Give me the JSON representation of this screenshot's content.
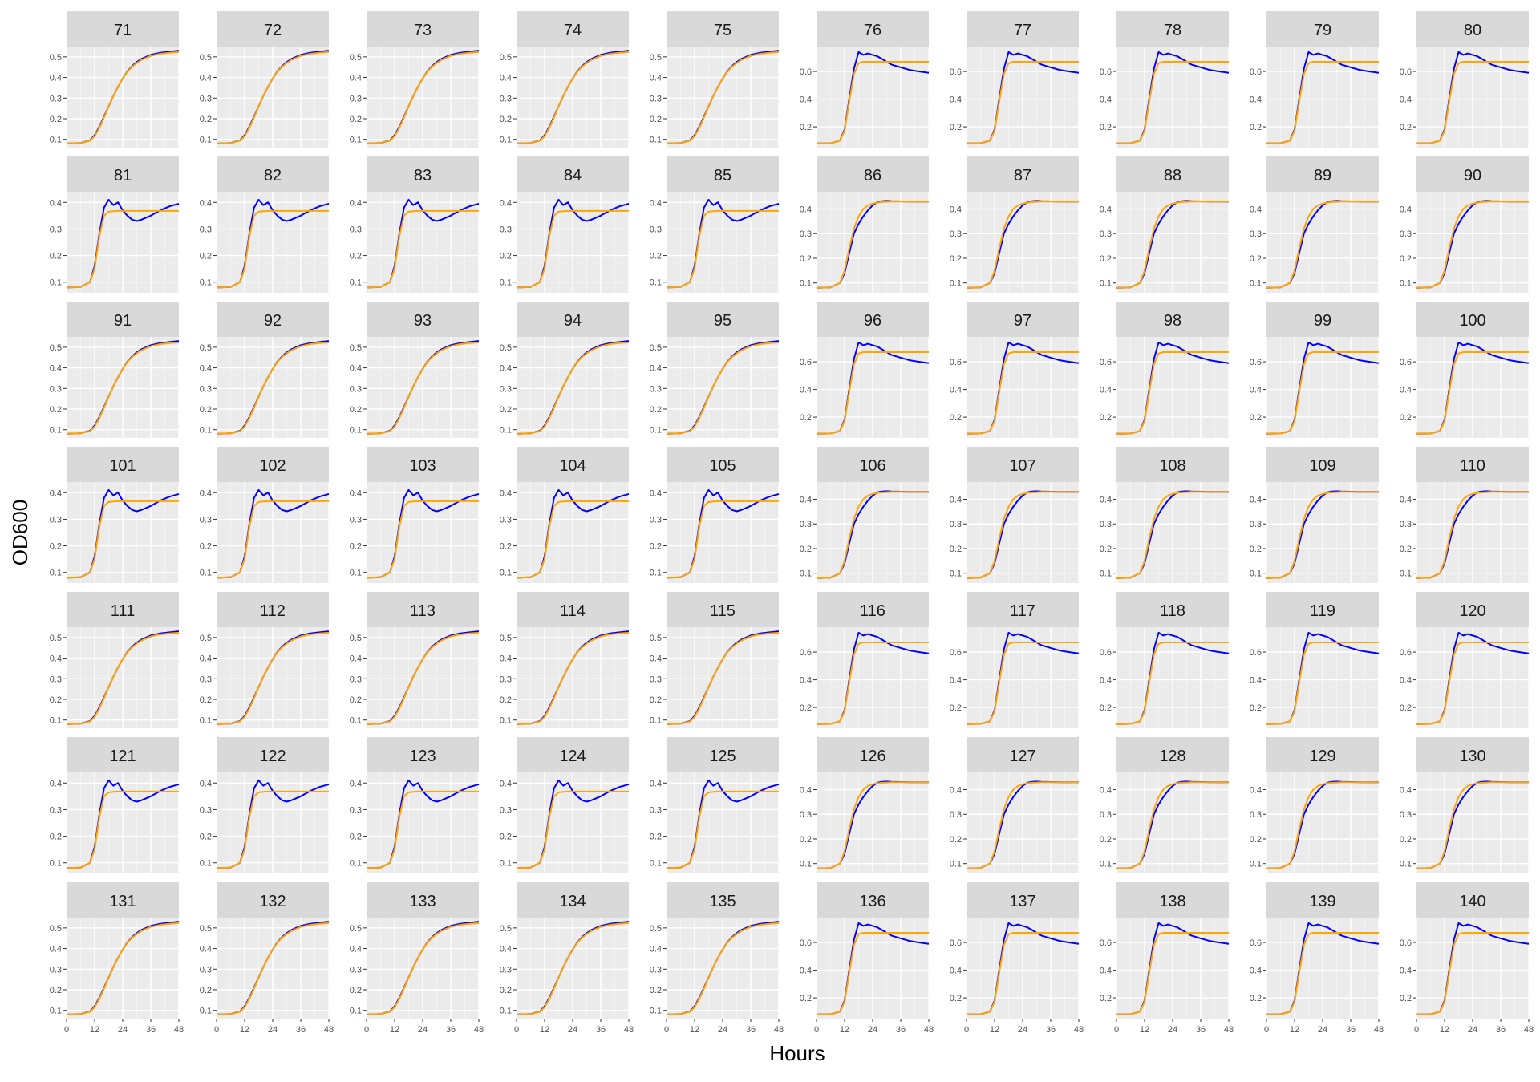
{
  "chart_data": {
    "type": "line",
    "facet_layout": {
      "rows": 7,
      "cols": 10
    },
    "xlabel": "Hours",
    "ylabel": "OD600",
    "x_ticks": [
      0,
      12,
      24,
      36,
      48
    ],
    "xlim": [
      0,
      48
    ],
    "grid": true,
    "legend": "none",
    "colors": {
      "observed": "#0000ff",
      "fitted": "#ffa500",
      "panel_bg": "#ebebeb",
      "strip_bg": "#d9d9d9",
      "grid": "#ffffff"
    },
    "shape_families": {
      "A": {
        "description": "smooth logistic",
        "ylim": [
          0.06,
          0.55
        ],
        "y_ticks": [
          0.1,
          0.2,
          0.3,
          0.4,
          0.5
        ]
      },
      "B": {
        "description": "sharp peak then decline",
        "ylim": [
          0.05,
          0.78
        ],
        "y_ticks": [
          0.2,
          0.4,
          0.6
        ]
      },
      "C": {
        "description": "overshoot with oscillation",
        "ylim": [
          0.06,
          0.44
        ],
        "y_ticks": [
          0.1,
          0.2,
          0.3,
          0.4
        ]
      },
      "D": {
        "description": "plateau near 0.43",
        "ylim": [
          0.06,
          0.47
        ],
        "y_ticks": [
          0.1,
          0.2,
          0.3,
          0.4
        ]
      }
    },
    "panels": [
      {
        "label": "71",
        "shape": "A"
      },
      {
        "label": "72",
        "shape": "A"
      },
      {
        "label": "73",
        "shape": "A"
      },
      {
        "label": "74",
        "shape": "A"
      },
      {
        "label": "75",
        "shape": "A"
      },
      {
        "label": "76",
        "shape": "B"
      },
      {
        "label": "77",
        "shape": "B"
      },
      {
        "label": "78",
        "shape": "B"
      },
      {
        "label": "79",
        "shape": "B"
      },
      {
        "label": "80",
        "shape": "B"
      },
      {
        "label": "81",
        "shape": "C"
      },
      {
        "label": "82",
        "shape": "C"
      },
      {
        "label": "83",
        "shape": "C"
      },
      {
        "label": "84",
        "shape": "C"
      },
      {
        "label": "85",
        "shape": "C"
      },
      {
        "label": "86",
        "shape": "D"
      },
      {
        "label": "87",
        "shape": "D"
      },
      {
        "label": "88",
        "shape": "D"
      },
      {
        "label": "89",
        "shape": "D"
      },
      {
        "label": "90",
        "shape": "D"
      },
      {
        "label": "91",
        "shape": "A"
      },
      {
        "label": "92",
        "shape": "A"
      },
      {
        "label": "93",
        "shape": "A"
      },
      {
        "label": "94",
        "shape": "A"
      },
      {
        "label": "95",
        "shape": "A"
      },
      {
        "label": "96",
        "shape": "B"
      },
      {
        "label": "97",
        "shape": "B"
      },
      {
        "label": "98",
        "shape": "B"
      },
      {
        "label": "99",
        "shape": "B"
      },
      {
        "label": "100",
        "shape": "B"
      },
      {
        "label": "101",
        "shape": "C"
      },
      {
        "label": "102",
        "shape": "C"
      },
      {
        "label": "103",
        "shape": "C"
      },
      {
        "label": "104",
        "shape": "C"
      },
      {
        "label": "105",
        "shape": "C"
      },
      {
        "label": "106",
        "shape": "D"
      },
      {
        "label": "107",
        "shape": "D"
      },
      {
        "label": "108",
        "shape": "D"
      },
      {
        "label": "109",
        "shape": "D"
      },
      {
        "label": "110",
        "shape": "D"
      },
      {
        "label": "111",
        "shape": "A"
      },
      {
        "label": "112",
        "shape": "A"
      },
      {
        "label": "113",
        "shape": "A"
      },
      {
        "label": "114",
        "shape": "A"
      },
      {
        "label": "115",
        "shape": "A"
      },
      {
        "label": "116",
        "shape": "B"
      },
      {
        "label": "117",
        "shape": "B"
      },
      {
        "label": "118",
        "shape": "B"
      },
      {
        "label": "119",
        "shape": "B"
      },
      {
        "label": "120",
        "shape": "B"
      },
      {
        "label": "121",
        "shape": "C"
      },
      {
        "label": "122",
        "shape": "C"
      },
      {
        "label": "123",
        "shape": "C"
      },
      {
        "label": "124",
        "shape": "C"
      },
      {
        "label": "125",
        "shape": "C"
      },
      {
        "label": "126",
        "shape": "D"
      },
      {
        "label": "127",
        "shape": "D"
      },
      {
        "label": "128",
        "shape": "D"
      },
      {
        "label": "129",
        "shape": "D"
      },
      {
        "label": "130",
        "shape": "D"
      },
      {
        "label": "131",
        "shape": "A"
      },
      {
        "label": "132",
        "shape": "A"
      },
      {
        "label": "133",
        "shape": "A"
      },
      {
        "label": "134",
        "shape": "A"
      },
      {
        "label": "135",
        "shape": "A"
      },
      {
        "label": "136",
        "shape": "B"
      },
      {
        "label": "137",
        "shape": "B"
      },
      {
        "label": "138",
        "shape": "B"
      },
      {
        "label": "139",
        "shape": "B"
      },
      {
        "label": "140",
        "shape": "B"
      }
    ],
    "curve_samples": {
      "x": [
        0,
        6,
        10,
        12,
        14,
        16,
        18,
        20,
        22,
        24,
        26,
        28,
        30,
        32,
        36,
        40,
        44,
        48
      ],
      "A": {
        "observed": [
          0.08,
          0.082,
          0.095,
          0.12,
          0.16,
          0.21,
          0.26,
          0.31,
          0.355,
          0.395,
          0.43,
          0.455,
          0.475,
          0.49,
          0.51,
          0.52,
          0.525,
          0.53
        ],
        "fitted": [
          0.08,
          0.082,
          0.093,
          0.115,
          0.155,
          0.205,
          0.26,
          0.31,
          0.355,
          0.395,
          0.428,
          0.452,
          0.47,
          0.485,
          0.505,
          0.515,
          0.52,
          0.523
        ]
      },
      "B": {
        "observed": [
          0.08,
          0.082,
          0.1,
          0.18,
          0.4,
          0.62,
          0.74,
          0.72,
          0.73,
          0.72,
          0.71,
          0.69,
          0.67,
          0.65,
          0.63,
          0.61,
          0.6,
          0.59
        ],
        "fitted": [
          0.08,
          0.082,
          0.1,
          0.17,
          0.38,
          0.58,
          0.66,
          0.67,
          0.67,
          0.67,
          0.67,
          0.67,
          0.67,
          0.67,
          0.67,
          0.67,
          0.67,
          0.67
        ]
      },
      "C": {
        "observed": [
          0.08,
          0.082,
          0.1,
          0.16,
          0.28,
          0.38,
          0.41,
          0.39,
          0.4,
          0.37,
          0.35,
          0.335,
          0.33,
          0.335,
          0.35,
          0.37,
          0.385,
          0.395
        ],
        "fitted": [
          0.08,
          0.082,
          0.1,
          0.15,
          0.27,
          0.35,
          0.365,
          0.367,
          0.368,
          0.368,
          0.368,
          0.368,
          0.368,
          0.368,
          0.368,
          0.368,
          0.368,
          0.368
        ]
      },
      "D": {
        "observed": [
          0.08,
          0.082,
          0.1,
          0.14,
          0.22,
          0.3,
          0.34,
          0.37,
          0.395,
          0.415,
          0.428,
          0.432,
          0.433,
          0.432,
          0.431,
          0.43,
          0.43,
          0.43
        ],
        "fitted": [
          0.08,
          0.082,
          0.1,
          0.15,
          0.24,
          0.32,
          0.37,
          0.4,
          0.415,
          0.422,
          0.426,
          0.428,
          0.429,
          0.43,
          0.43,
          0.43,
          0.43,
          0.43
        ]
      }
    }
  }
}
